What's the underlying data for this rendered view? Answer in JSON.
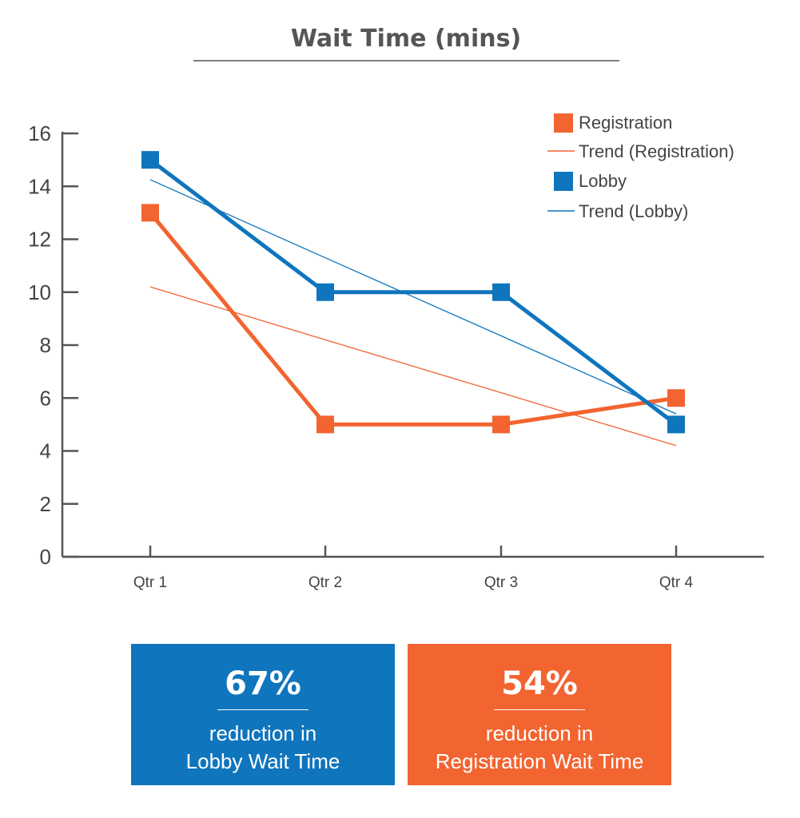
{
  "chart_data": {
    "type": "line",
    "title": "Wait Time (mins)",
    "categories": [
      "Qtr 1",
      "Qtr 2",
      "Qtr 3",
      "Qtr 4"
    ],
    "ylim": [
      0,
      16
    ],
    "yticks": [
      0,
      2,
      4,
      6,
      8,
      10,
      12,
      14,
      16
    ],
    "grid": false,
    "legend_position": "top-right",
    "series": [
      {
        "name": "Registration",
        "values": [
          13,
          5,
          5,
          6
        ],
        "color": "#f26430"
      },
      {
        "name": "Lobby",
        "values": [
          15,
          10,
          10,
          5
        ],
        "color": "#0f75bd"
      }
    ],
    "trendlines": [
      {
        "name": "Trend (Registration)",
        "values": [
          10.2,
          8.2,
          6.2,
          4.2
        ],
        "color": "#f26430"
      },
      {
        "name": "Trend (Lobby)",
        "values": [
          14.25,
          11.3,
          8.35,
          5.4
        ],
        "color": "#0f75bd"
      }
    ]
  },
  "stats": [
    {
      "value": "67%",
      "line1": "reduction in",
      "line2": "Lobby Wait Time",
      "color": "#0f75bd"
    },
    {
      "value": "54%",
      "line1": "reduction in",
      "line2": "Registration Wait Time",
      "color": "#f26430"
    }
  ]
}
